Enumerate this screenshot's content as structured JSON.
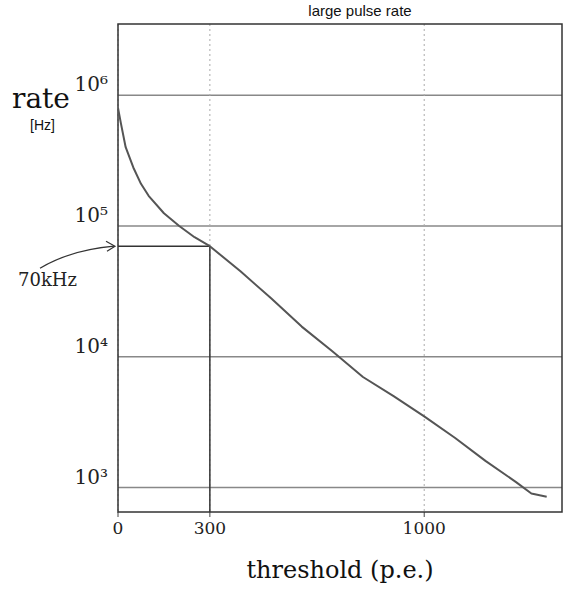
{
  "chart_data": {
    "type": "line",
    "title": "large pulse rate",
    "y_label": "rate",
    "y_unit": "[Hz]",
    "x_label": "threshold (p.e.)",
    "x": [
      0,
      10,
      25,
      50,
      75,
      100,
      150,
      200,
      250,
      300,
      400,
      500,
      600,
      700,
      800,
      900,
      1000,
      1100,
      1200,
      1300,
      1350,
      1400
    ],
    "series": [
      {
        "name": "large pulse rate",
        "color": "#555555",
        "values": [
          800000,
          600000,
          400000,
          280000,
          210000,
          170000,
          125000,
          100000,
          82000,
          70000,
          45000,
          28000,
          17000,
          11000,
          7000,
          5000,
          3500,
          2400,
          1600,
          1100,
          900,
          850
        ]
      }
    ],
    "xlim": [
      0,
      1450
    ],
    "xticks": [
      0,
      300,
      1000
    ],
    "ylim": [
      650,
      3500000
    ],
    "yticks": [
      {
        "value": 1000,
        "label": "10³"
      },
      {
        "value": 10000,
        "label": "10⁴"
      },
      {
        "value": 100000,
        "label": "10⁵"
      },
      {
        "value": 1000000,
        "label": "10⁶"
      }
    ],
    "log": "y",
    "grid": true,
    "annotations": [
      {
        "text": "70kHz",
        "x": 300,
        "y": 70000
      }
    ]
  }
}
